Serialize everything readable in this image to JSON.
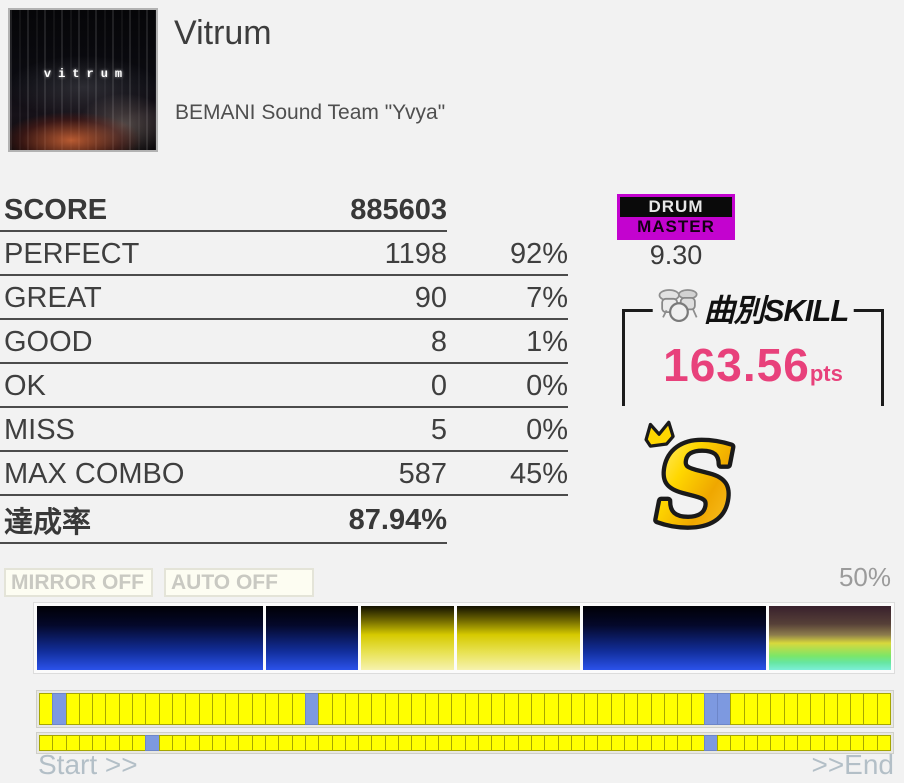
{
  "header": {
    "title": "Vitrum",
    "artist": "BEMANI Sound Team \"Yvya\"",
    "jacket_text": "vitrum"
  },
  "score_table": {
    "score_label": "SCORE",
    "score_value": "885603",
    "rows": [
      {
        "label": "PERFECT",
        "count": "1198",
        "percent": "92%"
      },
      {
        "label": "GREAT",
        "count": "90",
        "percent": "7%"
      },
      {
        "label": "GOOD",
        "count": "8",
        "percent": "1%"
      },
      {
        "label": "OK",
        "count": "0",
        "percent": "0%"
      },
      {
        "label": "MISS",
        "count": "5",
        "percent": "0%"
      },
      {
        "label": "MAX COMBO",
        "count": "587",
        "percent": "45%"
      }
    ],
    "achievement_label": "達成率",
    "achievement_value": "87.94%"
  },
  "right_panel": {
    "difficulty": {
      "instrument": "DRUM",
      "grade": "MASTER",
      "level": "9.30",
      "badge_magenta": "#c303cf",
      "badge_black": "#0a0a0a"
    },
    "skill": {
      "logo_text": "曲別SKILL",
      "points": "163.56",
      "unit": "pts",
      "points_color": "#e8417b"
    },
    "rank": "S",
    "rank_gold": "#ffd700"
  },
  "modifiers": {
    "mirror_label": "MIRROR OFF",
    "auto_label": "AUTO OFF"
  },
  "chart_data": {
    "type": "heatmap",
    "title": "play history timeline (groove gauge + note hit density)",
    "gauge": {
      "axis_max_label": "50%",
      "segment_colors": {
        "blue": "dark-to-blue gradient",
        "yellow": "dark-to-yellow gradient",
        "rainbow": "maroon-yellow-green-cyan gradient"
      },
      "segments": [
        {
          "color": "blue",
          "width_pct": 26.9
        },
        {
          "color": "blue",
          "width_pct": 11.0
        },
        {
          "color": "yellow",
          "width_pct": 11.1
        },
        {
          "color": "yellow",
          "width_pct": 14.7
        },
        {
          "color": "blue",
          "width_pct": 21.8
        },
        {
          "color": "rainbow",
          "width_pct": 14.5
        }
      ]
    },
    "note_bars": [
      {
        "cells": 64,
        "blue_indices": [
          1,
          20,
          50,
          51
        ],
        "yellow": "#ffff00",
        "blue": "#7d99e0"
      },
      {
        "cells": 64,
        "blue_indices": [
          8,
          50
        ],
        "yellow": "#ffff00",
        "blue": "#7d99e0"
      }
    ]
  },
  "footer": {
    "start_label": "Start >>",
    "end_label": ">>End"
  }
}
